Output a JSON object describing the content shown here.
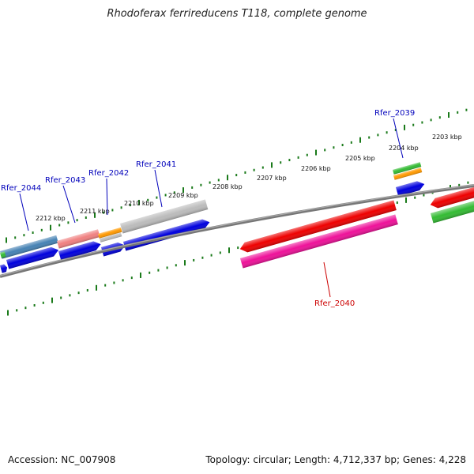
{
  "title": "Rhodoferax ferrireducens T118, complete genome",
  "footer": {
    "accession": "Accession: NC_007908",
    "summary": "Topology: circular; Length: 4,712,337 bp; Genes: 4,228"
  },
  "colors": {
    "backbone": "#777777",
    "tick": "#1a7a1a",
    "blue_gene": "#0000dd",
    "red_gene": "#ee0000",
    "magenta_gene": "#ee1199",
    "green_gene": "#33bb33",
    "orange_gene": "#ff9900",
    "steel_gene": "#4682b4",
    "salmon_gene": "#f08080",
    "gray_gene": "#bbbbbb",
    "label_blue": "#0000bb",
    "label_red": "#cc0000"
  },
  "scale_labels": [
    "2212 kbp",
    "2211 kbp",
    "2210 kbp",
    "2209 kbp",
    "2208 kbp",
    "2207 kbp",
    "2206 kbp",
    "2205 kbp",
    "2204 kbp",
    "2203 kbp"
  ],
  "gene_labels": [
    {
      "text": "Rfer_2044",
      "color": "label_blue"
    },
    {
      "text": "Rfer_2043",
      "color": "label_blue"
    },
    {
      "text": "Rfer_2042",
      "color": "label_blue"
    },
    {
      "text": "Rfer_2041",
      "color": "label_blue"
    },
    {
      "text": "Rfer_2039",
      "color": "label_blue"
    },
    {
      "text": "Rfer_2040",
      "color": "label_red"
    }
  ]
}
